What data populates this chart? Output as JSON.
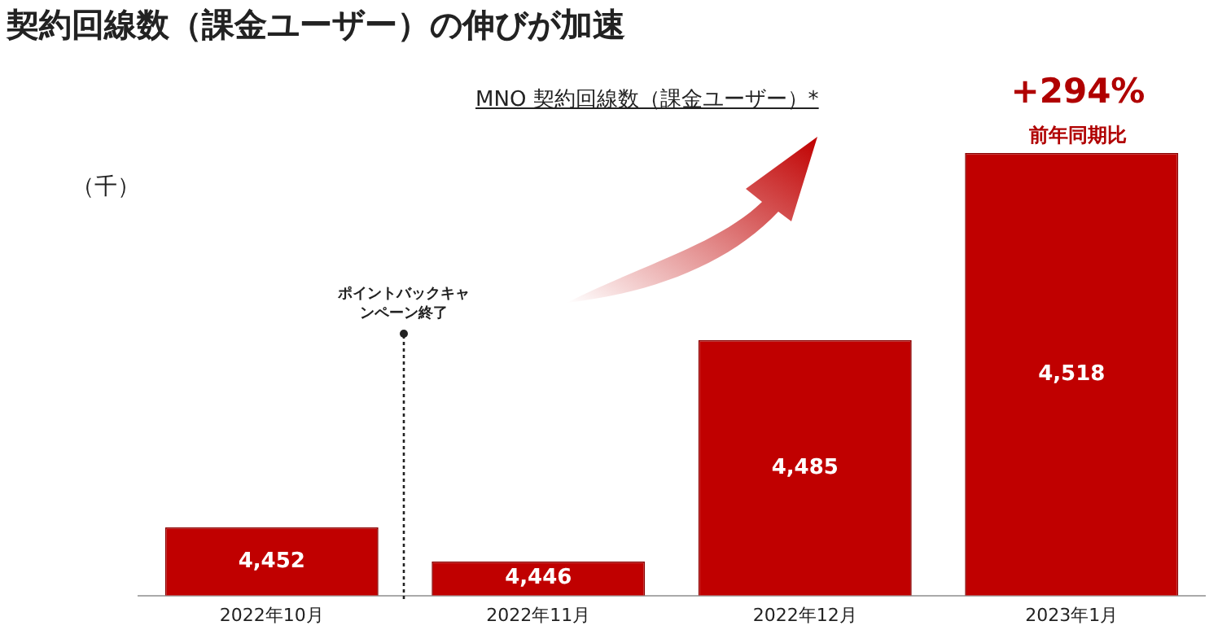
{
  "chart_data": {
    "type": "bar",
    "title": "契約回線数（課金ユーザー）の伸びが加速",
    "ylabel": "（千）",
    "categories": [
      "2022年10月",
      "2022年11月",
      "2022年12月",
      "2023年1月"
    ],
    "values": [
      4452,
      4446,
      4485,
      4518
    ],
    "value_labels": [
      "4,452",
      "4,446",
      "4,485",
      "4,518"
    ],
    "color": "#c00000",
    "tick_labels": "x",
    "grid": false,
    "legend": false,
    "annotations": [
      "MNO 契約回線数（課金ユーザー）*",
      "+294%",
      "前年同期比",
      "ポイントバックキャンペーン終了"
    ]
  }
}
